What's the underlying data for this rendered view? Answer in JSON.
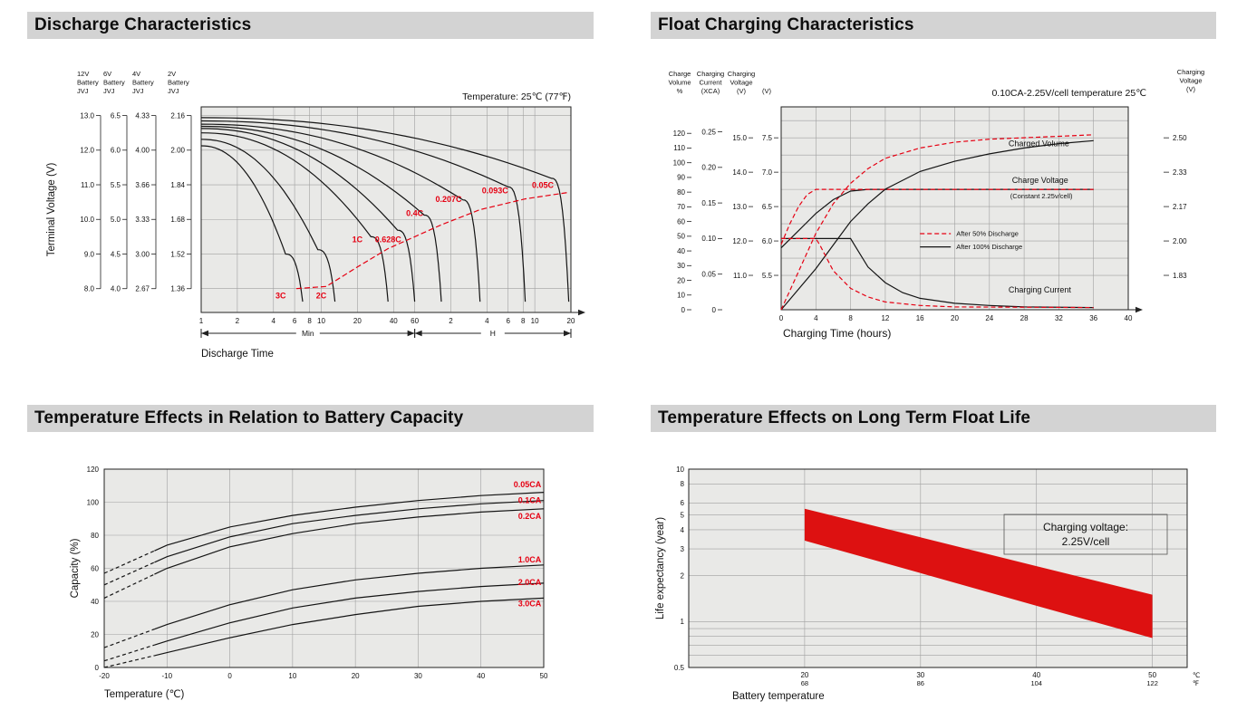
{
  "colors": {
    "accent_red": "#e60012",
    "band_red": "#dd1111",
    "curve_black": "#141414",
    "chart_bg": "#e9e9e7",
    "grid": "#a0a0a0",
    "header_bg": "#d3d3d3",
    "frame": "#222222"
  },
  "sections": [
    {
      "title": "Discharge Characteristics"
    },
    {
      "title": "Float Charging Characteristics"
    },
    {
      "title": "Temperature Effects in Relation to Battery Capacity"
    },
    {
      "title": "Temperature Effects on Long Term Float Life"
    }
  ],
  "chart_data": [
    {
      "id": "discharge",
      "type": "line",
      "title": "Discharge Characteristics",
      "note": "Temperature: 25℃ (77℉)",
      "xlabel": "Discharge Time",
      "ylabel": "Terminal Voltage (V)",
      "x_unit_segments": [
        "Min",
        "H"
      ],
      "x_ticks_minutes": [
        1,
        2,
        4,
        6,
        8,
        10,
        20,
        40,
        60
      ],
      "x_ticks_hours": [
        2,
        4,
        6,
        8,
        10,
        20
      ],
      "x_range_minutes": [
        1,
        1200
      ],
      "y_range": [
        1.25,
        2.2
      ],
      "y_gridlines": [
        2.16,
        2.0,
        1.84,
        1.68,
        1.52,
        1.36
      ],
      "voltage_scales": [
        {
          "header_lines": [
            "12V",
            "Battery",
            "JVJ"
          ],
          "values": [
            "13.0",
            "12.0",
            "11.0",
            "10.0",
            "9.0",
            "8.0"
          ]
        },
        {
          "header_lines": [
            "6V",
            "Battery",
            "JVJ"
          ],
          "values": [
            "6.5",
            "6.0",
            "5.5",
            "5.0",
            "4.5",
            "4.0"
          ]
        },
        {
          "header_lines": [
            "4V",
            "Battery",
            "JVJ"
          ],
          "values": [
            "4.33",
            "4.00",
            "3.66",
            "3.33",
            "3.00",
            "2.67"
          ]
        },
        {
          "header_lines": [
            "2V",
            "Battery",
            "JVJ"
          ],
          "values": [
            "2.16",
            "2.00",
            "1.84",
            "1.68",
            "1.52",
            "1.36"
          ]
        }
      ],
      "series": [
        {
          "name": "3C",
          "end_min": 7,
          "v_start": 2.02,
          "v_knee": 1.45,
          "label_at": [
            4.6,
            1.315
          ]
        },
        {
          "name": "2C",
          "end_min": 13,
          "v_start": 2.05,
          "v_knee": 1.47,
          "label_at": [
            10,
            1.315
          ]
        },
        {
          "name": "1C",
          "end_min": 36,
          "v_start": 2.08,
          "v_knee": 1.53,
          "label_at": [
            20,
            1.575
          ]
        },
        {
          "name": "0.628C",
          "end_min": 60,
          "v_start": 2.1,
          "v_knee": 1.56,
          "label_at": [
            36,
            1.575
          ]
        },
        {
          "name": "0.4C",
          "end_min": 100,
          "v_start": 2.11,
          "v_knee": 1.63,
          "label_at": [
            60,
            1.695
          ]
        },
        {
          "name": "0.207C",
          "end_min": 210,
          "v_start": 2.12,
          "v_knee": 1.7,
          "label_at": [
            115,
            1.76
          ]
        },
        {
          "name": "0.093C",
          "end_min": 500,
          "v_start": 2.135,
          "v_knee": 1.76,
          "label_at": [
            280,
            1.8
          ]
        },
        {
          "name": "0.05C",
          "end_min": 1150,
          "v_start": 2.15,
          "v_knee": 1.8,
          "label_at": [
            700,
            1.825
          ]
        }
      ],
      "cutoff_curve": [
        [
          6.2,
          1.36
        ],
        [
          11,
          1.37
        ],
        [
          20,
          1.46
        ],
        [
          36,
          1.545
        ],
        [
          60,
          1.6
        ],
        [
          100,
          1.655
        ],
        [
          210,
          1.725
        ],
        [
          500,
          1.775
        ],
        [
          1150,
          1.805
        ]
      ]
    },
    {
      "id": "float_charging",
      "type": "line",
      "title": "Float Charging Characteristics",
      "note": "0.10CA-2.25V/cell  temperature 25℃",
      "xlabel": "Charging Time (hours)",
      "x_ticks": [
        0,
        4,
        8,
        12,
        16,
        20,
        24,
        28,
        32,
        36,
        40
      ],
      "x_range": [
        0,
        40
      ],
      "axis_ranges": {
        "volume": [
          0,
          138
        ],
        "current": [
          0,
          0.285
        ],
        "voltage12": [
          10,
          15.9
        ],
        "voltage6": [
          5,
          7.95
        ]
      },
      "left_axes": [
        {
          "header_lines": [
            "Charge",
            "Volume",
            "%"
          ],
          "axis": "volume",
          "values": [
            "120",
            "110",
            "100",
            "90",
            "80",
            "70",
            "60",
            "50",
            "40",
            "30",
            "20",
            "10",
            "0"
          ]
        },
        {
          "header_lines": [
            "Charging",
            "Current",
            "(XCA)"
          ],
          "axis": "current",
          "values": [
            "0.25",
            "0.20",
            "0.15",
            "0.10",
            "0.05",
            "0"
          ]
        },
        {
          "header_lines": [
            "Charging",
            "Voltage",
            "(V)"
          ],
          "axis": "voltage12",
          "values": [
            "15.0",
            "14.0",
            "13.0",
            "12.0",
            "11.0"
          ]
        },
        {
          "header_lines": [
            "",
            "",
            "(V)"
          ],
          "axis": "voltage6",
          "values": [
            "7.5",
            "7.0",
            "6.5",
            "6.0",
            "5.5"
          ]
        }
      ],
      "right_axis": {
        "header_lines": [
          "Charging",
          "Voltage",
          "(V)"
        ],
        "values": [
          "2.50",
          "2.33",
          "2.17",
          "2.00",
          "1.83"
        ]
      },
      "legend": {
        "items": [
          {
            "label": "After  50% Discharge",
            "style": "dashed"
          },
          {
            "label": "After 100% Discharge",
            "style": "solid"
          }
        ]
      },
      "plot_labels": [
        {
          "text": "Charged Volume",
          "fx": 0.655,
          "fy": 0.195,
          "size": 9
        },
        {
          "text": "Charge Voltage",
          "fx": 0.665,
          "fy": 0.375,
          "size": 9
        },
        {
          "text": "(Constant 2.25v/cell)",
          "fx": 0.66,
          "fy": 0.45,
          "size": 7.5
        },
        {
          "text": "Charging Current",
          "fx": 0.655,
          "fy": 0.915,
          "size": 9
        }
      ],
      "series": [
        {
          "name": "Charged Volume (after 100% discharge)",
          "axis": "volume",
          "style": "solid",
          "points": [
            [
              0,
              0
            ],
            [
              2,
              14
            ],
            [
              4,
              28
            ],
            [
              6,
              44
            ],
            [
              8,
              60
            ],
            [
              10,
              72
            ],
            [
              12,
              82
            ],
            [
              16,
              94
            ],
            [
              20,
              101
            ],
            [
              24,
              106
            ],
            [
              28,
              110
            ],
            [
              32,
              113
            ],
            [
              36,
              115
            ]
          ]
        },
        {
          "name": "Charged Volume (after 50% discharge)",
          "axis": "volume",
          "style": "dashed",
          "points": [
            [
              0,
              0
            ],
            [
              2,
              26
            ],
            [
              4,
              52
            ],
            [
              6,
              72
            ],
            [
              8,
              86
            ],
            [
              10,
              96
            ],
            [
              12,
              103
            ],
            [
              16,
              110
            ],
            [
              20,
              114
            ],
            [
              24,
              116
            ],
            [
              28,
              117
            ],
            [
              32,
              118
            ],
            [
              36,
              119
            ]
          ]
        },
        {
          "name": "Charge Voltage (after 100% discharge)",
          "axis": "voltage12",
          "style": "solid",
          "points": [
            [
              0,
              11.8
            ],
            [
              2,
              12.3
            ],
            [
              4,
              12.8
            ],
            [
              6,
              13.2
            ],
            [
              8,
              13.45
            ],
            [
              10,
              13.5
            ],
            [
              36,
              13.5
            ]
          ]
        },
        {
          "name": "Charge Voltage (after 50% discharge)",
          "axis": "voltage12",
          "style": "dashed",
          "points": [
            [
              0,
              11.9
            ],
            [
              1,
              12.5
            ],
            [
              2,
              13.0
            ],
            [
              3,
              13.35
            ],
            [
              4,
              13.5
            ],
            [
              36,
              13.5
            ]
          ]
        },
        {
          "name": "Charging Current (after 100% discharge)",
          "axis": "current",
          "style": "solid",
          "points": [
            [
              0,
              0.1
            ],
            [
              8,
              0.1
            ],
            [
              8.5,
              0.09
            ],
            [
              10,
              0.06
            ],
            [
              12,
              0.038
            ],
            [
              14,
              0.024
            ],
            [
              16,
              0.016
            ],
            [
              20,
              0.009
            ],
            [
              24,
              0.006
            ],
            [
              28,
              0.004
            ],
            [
              36,
              0.003
            ]
          ]
        },
        {
          "name": "Charging Current (after 50% discharge)",
          "axis": "current",
          "style": "dashed",
          "points": [
            [
              0,
              0.1
            ],
            [
              4,
              0.1
            ],
            [
              4.5,
              0.09
            ],
            [
              6,
              0.055
            ],
            [
              8,
              0.03
            ],
            [
              10,
              0.018
            ],
            [
              12,
              0.011
            ],
            [
              16,
              0.006
            ],
            [
              20,
              0.004
            ],
            [
              36,
              0.003
            ]
          ]
        }
      ]
    },
    {
      "id": "capacity_vs_temperature",
      "type": "line",
      "title": "Temperature Effects in Relation to Battery Capacity",
      "xlabel": "Temperature (℃)",
      "ylabel": "Capacity (%)",
      "x_ticks": [
        -20,
        -10,
        0,
        10,
        20,
        30,
        40,
        50
      ],
      "y_ticks": [
        0,
        20,
        40,
        60,
        80,
        100,
        120
      ],
      "x_range": [
        -20,
        50
      ],
      "y_range": [
        0,
        120
      ],
      "dashed_below_temp": -12,
      "series": [
        {
          "name": "0.05CA",
          "label_y": 109,
          "points": [
            [
              -20,
              57
            ],
            [
              -10,
              74
            ],
            [
              0,
              85
            ],
            [
              10,
              92
            ],
            [
              20,
              97
            ],
            [
              30,
              101
            ],
            [
              40,
              104
            ],
            [
              50,
              106
            ]
          ]
        },
        {
          "name": "0.1CA",
          "label_y": 99.5,
          "points": [
            [
              -20,
              50
            ],
            [
              -10,
              67
            ],
            [
              0,
              79
            ],
            [
              10,
              87
            ],
            [
              20,
              92
            ],
            [
              30,
              96
            ],
            [
              40,
              99
            ],
            [
              50,
              101
            ]
          ]
        },
        {
          "name": "0.2CA",
          "label_y": 90,
          "points": [
            [
              -20,
              42
            ],
            [
              -10,
              60
            ],
            [
              0,
              73
            ],
            [
              10,
              81
            ],
            [
              20,
              87
            ],
            [
              30,
              91
            ],
            [
              40,
              94
            ],
            [
              50,
              96
            ]
          ]
        },
        {
          "name": "1.0CA",
          "label_y": 63.5,
          "points": [
            [
              -20,
              12
            ],
            [
              -10,
              26
            ],
            [
              0,
              38
            ],
            [
              10,
              47
            ],
            [
              20,
              53
            ],
            [
              30,
              57
            ],
            [
              40,
              60
            ],
            [
              50,
              62
            ]
          ]
        },
        {
          "name": "2.0CA",
          "label_y": 50,
          "points": [
            [
              -20,
              4
            ],
            [
              -10,
              16
            ],
            [
              0,
              27
            ],
            [
              10,
              36
            ],
            [
              20,
              42
            ],
            [
              30,
              46
            ],
            [
              40,
              49
            ],
            [
              50,
              51
            ]
          ]
        },
        {
          "name": "3.0CA",
          "label_y": 37,
          "points": [
            [
              -20,
              0
            ],
            [
              -10,
              9
            ],
            [
              0,
              18
            ],
            [
              10,
              26
            ],
            [
              20,
              32
            ],
            [
              30,
              37
            ],
            [
              40,
              40
            ],
            [
              50,
              42
            ]
          ]
        }
      ]
    },
    {
      "id": "float_life_vs_temperature",
      "type": "area",
      "title": "Temperature Effects on Long Term Float Life",
      "xlabel": "Battery temperature",
      "ylabel": "Life expectancy (year)",
      "annotation": [
        "Charging voltage:",
        "2.25V/cell"
      ],
      "x_range": [
        10,
        53
      ],
      "y_range_log": [
        0.5,
        10
      ],
      "y_tick_labels": [
        "10",
        "8",
        "6",
        "5",
        "4",
        "3",
        "2",
        "1",
        "0.5"
      ],
      "y_gridlines": [
        10,
        8,
        6,
        5,
        4,
        3,
        2,
        1,
        0.9,
        0.8,
        0.7,
        0.6,
        0.5
      ],
      "x_ticks": [
        {
          "v": 20,
          "c": "20",
          "f": "68"
        },
        {
          "v": 30,
          "c": "30",
          "f": "86"
        },
        {
          "v": 40,
          "c": "40",
          "f": "104"
        },
        {
          "v": 50,
          "c": "50",
          "f": "122"
        }
      ],
      "unit_labels": {
        "c": "℃",
        "f": "℉"
      },
      "band": {
        "upper": [
          [
            20,
            5.5
          ],
          [
            30,
            3.57
          ],
          [
            40,
            2.31
          ],
          [
            50,
            1.5
          ]
        ],
        "lower": [
          [
            20,
            3.4
          ],
          [
            30,
            2.08
          ],
          [
            40,
            1.27
          ],
          [
            50,
            0.78
          ]
        ]
      }
    }
  ]
}
